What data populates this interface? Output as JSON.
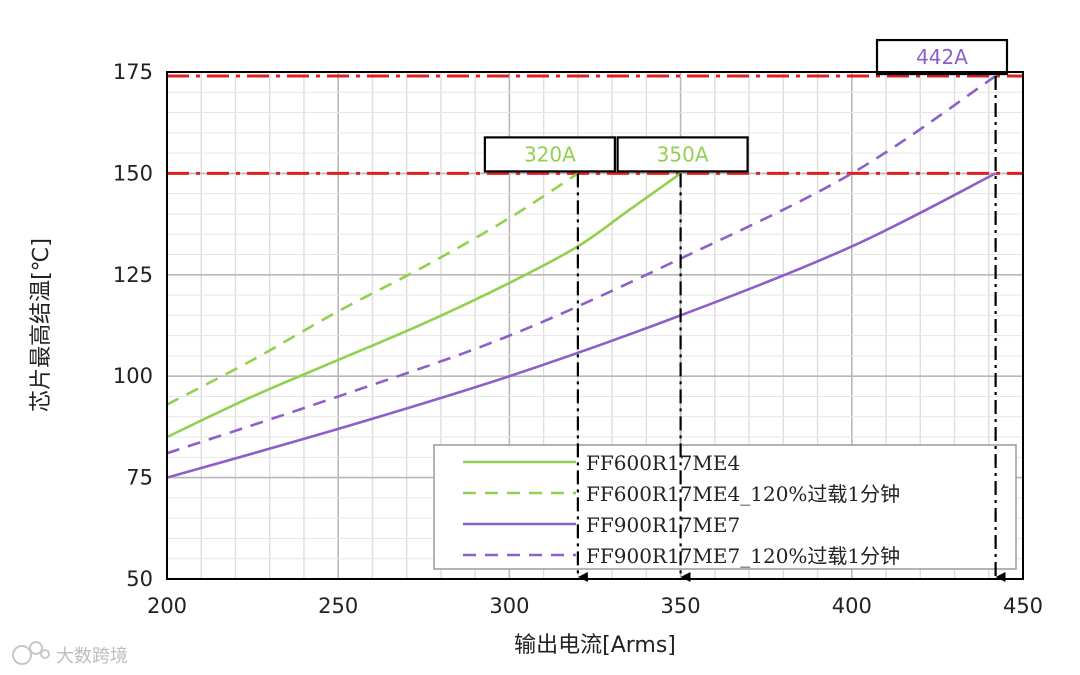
{
  "chart_data": {
    "type": "line",
    "title": "",
    "xlabel": "输出电流[Arms]",
    "ylabel": "芯片最高结温[℃]",
    "xlim": [
      200,
      450
    ],
    "ylim": [
      50,
      175
    ],
    "x_ticks": [
      200,
      250,
      300,
      350,
      400,
      450
    ],
    "y_ticks": [
      50,
      75,
      100,
      125,
      150,
      175
    ],
    "grid": true,
    "legend_position": "bottom-right",
    "series": [
      {
        "name": "FF600R17ME4",
        "color": "#92d050",
        "dash": "solid",
        "x": [
          200,
          225,
          250,
          275,
          300,
          320,
          335,
          350
        ],
        "y": [
          85,
          95,
          104,
          113,
          123,
          132,
          141,
          150
        ]
      },
      {
        "name": "FF600R17ME4_120%过载1分钟",
        "color": "#92d050",
        "dash": "dashed",
        "x": [
          200,
          225,
          250,
          275,
          300,
          320
        ],
        "y": [
          93,
          104,
          116,
          127,
          139,
          150
        ]
      },
      {
        "name": "FF900R17ME7",
        "color": "#8e5fc8",
        "dash": "solid",
        "x": [
          200,
          250,
          300,
          350,
          400,
          442
        ],
        "y": [
          75,
          87,
          100,
          115,
          132,
          150
        ]
      },
      {
        "name": "FF900R17ME7_120%过载1分钟",
        "color": "#8e5fc8",
        "dash": "dashed",
        "x": [
          200,
          250,
          300,
          350,
          400,
          442
        ],
        "y": [
          81,
          95,
          110,
          129,
          150,
          174
        ]
      }
    ],
    "reference_lines": [
      {
        "axis": "y",
        "value": 150,
        "color": "#e02020"
      },
      {
        "axis": "y",
        "value": 174,
        "color": "#e02020"
      }
    ],
    "annotations": [
      {
        "label": "320A",
        "x": 320,
        "y": 150,
        "color": "#92d050"
      },
      {
        "label": "350A",
        "x": 350,
        "y": 150,
        "color": "#92d050"
      },
      {
        "label": "442A",
        "x": 442,
        "y": 174,
        "color": "#8e5fc8"
      }
    ]
  },
  "watermark": {
    "text": "大数跨境"
  }
}
